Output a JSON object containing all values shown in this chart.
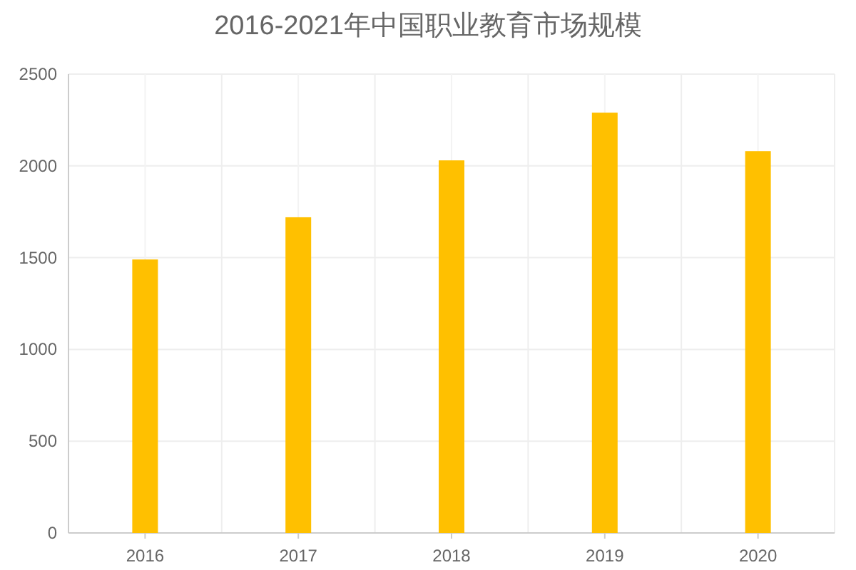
{
  "chart_data": {
    "type": "bar",
    "title": "2016-2021年中国职业教育市场规模",
    "categories": [
      "2016",
      "2017",
      "2018",
      "2019",
      "2020"
    ],
    "values": [
      1490,
      1720,
      2030,
      2290,
      2080
    ],
    "color": "#ffc000",
    "ylim": [
      0,
      2500
    ],
    "yticks": [
      0,
      500,
      1000,
      1500,
      2000,
      2500
    ],
    "grid": true
  }
}
